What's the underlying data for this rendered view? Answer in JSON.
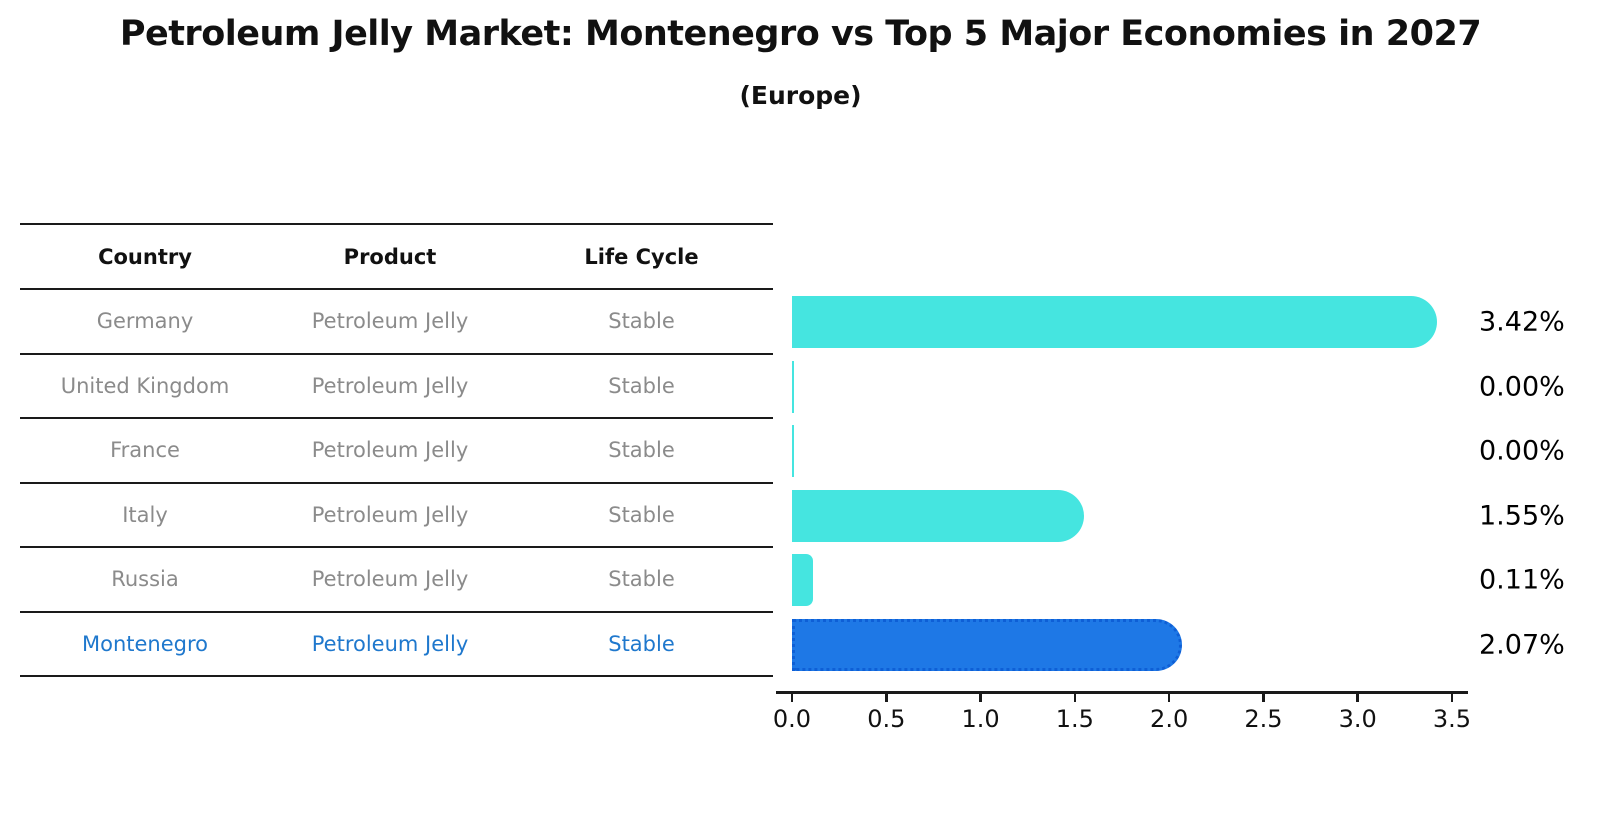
{
  "title": "Petroleum Jelly Market: Montenegro vs Top 5 Major Economies in 2027",
  "subtitle": "(Europe)",
  "table": {
    "columns": [
      "Country",
      "Product",
      "Life Cycle"
    ],
    "rows": [
      {
        "country": "Germany",
        "product": "Petroleum Jelly",
        "life_cycle": "Stable",
        "highlight": false
      },
      {
        "country": "United Kingdom",
        "product": "Petroleum Jelly",
        "life_cycle": "Stable",
        "highlight": false
      },
      {
        "country": "France",
        "product": "Petroleum Jelly",
        "life_cycle": "Stable",
        "highlight": false
      },
      {
        "country": "Italy",
        "product": "Petroleum Jelly",
        "life_cycle": "Stable",
        "highlight": false
      },
      {
        "country": "Russia",
        "product": "Petroleum Jelly",
        "life_cycle": "Stable",
        "highlight": false
      },
      {
        "country": "Montenegro",
        "product": "Petroleum Jelly",
        "life_cycle": "Stable",
        "highlight": true
      }
    ]
  },
  "chart_data": {
    "type": "bar",
    "orientation": "horizontal",
    "title": "Petroleum Jelly Market: Montenegro vs Top 5 Major Economies in 2027",
    "subtitle": "(Europe)",
    "categories": [
      "Germany",
      "United Kingdom",
      "France",
      "Italy",
      "Russia",
      "Montenegro"
    ],
    "values": [
      3.42,
      0.0,
      0.0,
      1.55,
      0.11,
      2.07
    ],
    "value_labels": [
      "3.42%",
      "0.00%",
      "0.00%",
      "1.55%",
      "0.11%",
      "2.07%"
    ],
    "xticks": [
      "0.0",
      "0.5",
      "1.0",
      "1.5",
      "2.0",
      "2.5",
      "3.0",
      "3.5"
    ],
    "xlim": [
      0,
      3.5
    ],
    "grid": false,
    "legend": false,
    "highlight_index": 5,
    "bar_colors": {
      "default": "#45E5E0",
      "highlight": "#1E78E6",
      "highlight_edge": "#0E5FD6"
    }
  },
  "colors": {
    "line": "#1a1a1a",
    "muted_text": "#8b8b8b",
    "highlight_text": "#1f78cd",
    "value_text": "#000000"
  }
}
